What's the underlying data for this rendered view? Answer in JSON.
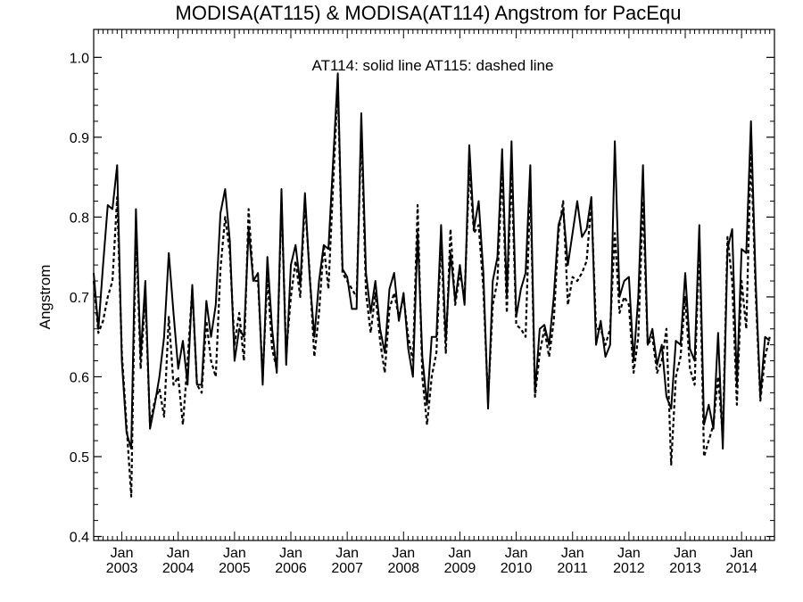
{
  "chart_data": {
    "type": "line",
    "title": "MODISA(AT115) & MODISA(AT114)  Angstrom for PacEqu",
    "annotation": "AT114: solid line   AT115: dashed line",
    "ylabel": "Angstrom",
    "xlabel": "",
    "ylim": [
      0.395,
      1.035
    ],
    "xlim": [
      "2002-07",
      "2014-08"
    ],
    "y_ticks": [
      "0.4",
      "0.5",
      "0.6",
      "0.7",
      "0.8",
      "0.9",
      "1.0"
    ],
    "x_ticks": [
      {
        "month": "Jan",
        "year": "2003",
        "date": "2003-01"
      },
      {
        "month": "Jan",
        "year": "2004",
        "date": "2004-01"
      },
      {
        "month": "Jan",
        "year": "2005",
        "date": "2005-01"
      },
      {
        "month": "Jan",
        "year": "2006",
        "date": "2006-01"
      },
      {
        "month": "Jan",
        "year": "2007",
        "date": "2007-01"
      },
      {
        "month": "Jan",
        "year": "2008",
        "date": "2008-01"
      },
      {
        "month": "Jan",
        "year": "2009",
        "date": "2009-01"
      },
      {
        "month": "Jan",
        "year": "2010",
        "date": "2010-01"
      },
      {
        "month": "Jan",
        "year": "2011",
        "date": "2011-01"
      },
      {
        "month": "Jan",
        "year": "2012",
        "date": "2012-01"
      },
      {
        "month": "Jan",
        "year": "2013",
        "date": "2013-01"
      },
      {
        "month": "Jan",
        "year": "2014",
        "date": "2014-01"
      }
    ],
    "series": [
      {
        "name": "AT114",
        "style": "solid",
        "color": "#000000",
        "x_start": "2002-07",
        "values": [
          0.73,
          0.66,
          0.74,
          0.815,
          0.81,
          0.865,
          0.62,
          0.53,
          0.51,
          0.81,
          0.625,
          0.72,
          0.535,
          0.565,
          0.6,
          0.65,
          0.755,
          0.68,
          0.61,
          0.645,
          0.59,
          0.715,
          0.59,
          0.59,
          0.695,
          0.65,
          0.69,
          0.805,
          0.835,
          0.77,
          0.62,
          0.66,
          0.65,
          0.785,
          0.72,
          0.73,
          0.59,
          0.75,
          0.66,
          0.605,
          0.835,
          0.615,
          0.74,
          0.765,
          0.715,
          0.83,
          0.725,
          0.65,
          0.72,
          0.765,
          0.76,
          0.87,
          0.98,
          0.735,
          0.725,
          0.685,
          0.685,
          0.93,
          0.73,
          0.68,
          0.72,
          0.66,
          0.63,
          0.71,
          0.73,
          0.67,
          0.705,
          0.635,
          0.6,
          0.78,
          0.625,
          0.565,
          0.65,
          0.65,
          0.79,
          0.645,
          0.755,
          0.695,
          0.74,
          0.69,
          0.89,
          0.785,
          0.82,
          0.73,
          0.56,
          0.72,
          0.75,
          0.885,
          0.7,
          0.895,
          0.675,
          0.71,
          0.73,
          0.865,
          0.58,
          0.66,
          0.665,
          0.64,
          0.7,
          0.79,
          0.81,
          0.74,
          0.78,
          0.82,
          0.775,
          0.785,
          0.825,
          0.64,
          0.67,
          0.625,
          0.64,
          0.895,
          0.7,
          0.72,
          0.725,
          0.62,
          0.7,
          0.865,
          0.64,
          0.66,
          0.615,
          0.64,
          0.575,
          0.56,
          0.645,
          0.64,
          0.73,
          0.635,
          0.62,
          0.79,
          0.54,
          0.565,
          0.535,
          0.655,
          0.51,
          0.76,
          0.785,
          0.59,
          0.76,
          0.755,
          0.92,
          0.72,
          0.575,
          0.65,
          0.645
        ]
      },
      {
        "name": "AT115",
        "style": "dashed",
        "color": "#000000",
        "x_start": "2002-07",
        "values": [
          0.72,
          0.655,
          0.67,
          0.7,
          0.72,
          0.825,
          0.63,
          0.54,
          0.45,
          0.79,
          0.61,
          0.7,
          0.54,
          0.57,
          0.585,
          0.55,
          0.675,
          0.59,
          0.6,
          0.54,
          0.62,
          0.71,
          0.59,
          0.58,
          0.67,
          0.62,
          0.6,
          0.735,
          0.8,
          0.755,
          0.64,
          0.68,
          0.62,
          0.81,
          0.72,
          0.72,
          0.6,
          0.725,
          0.635,
          0.61,
          0.82,
          0.63,
          0.7,
          0.745,
          0.7,
          0.82,
          0.73,
          0.625,
          0.68,
          0.765,
          0.71,
          0.84,
          0.965,
          0.73,
          0.72,
          0.71,
          0.7,
          0.91,
          0.705,
          0.655,
          0.705,
          0.645,
          0.605,
          0.685,
          0.705,
          0.675,
          0.7,
          0.65,
          0.62,
          0.815,
          0.6,
          0.54,
          0.6,
          0.63,
          0.77,
          0.63,
          0.785,
          0.69,
          0.73,
          0.7,
          0.86,
          0.78,
          0.79,
          0.71,
          0.57,
          0.69,
          0.72,
          0.86,
          0.68,
          0.86,
          0.665,
          0.66,
          0.65,
          0.84,
          0.575,
          0.63,
          0.66,
          0.625,
          0.67,
          0.78,
          0.82,
          0.69,
          0.725,
          0.72,
          0.73,
          0.745,
          0.82,
          0.66,
          0.66,
          0.64,
          0.66,
          0.78,
          0.68,
          0.7,
          0.69,
          0.605,
          0.65,
          0.82,
          0.64,
          0.65,
          0.605,
          0.62,
          0.66,
          0.49,
          0.6,
          0.625,
          0.7,
          0.61,
          0.59,
          0.77,
          0.5,
          0.52,
          0.54,
          0.6,
          0.525,
          0.775,
          0.72,
          0.565,
          0.72,
          0.66,
          0.885,
          0.705,
          0.57,
          0.625,
          0.65
        ]
      }
    ],
    "grid": false,
    "legend": "none"
  }
}
